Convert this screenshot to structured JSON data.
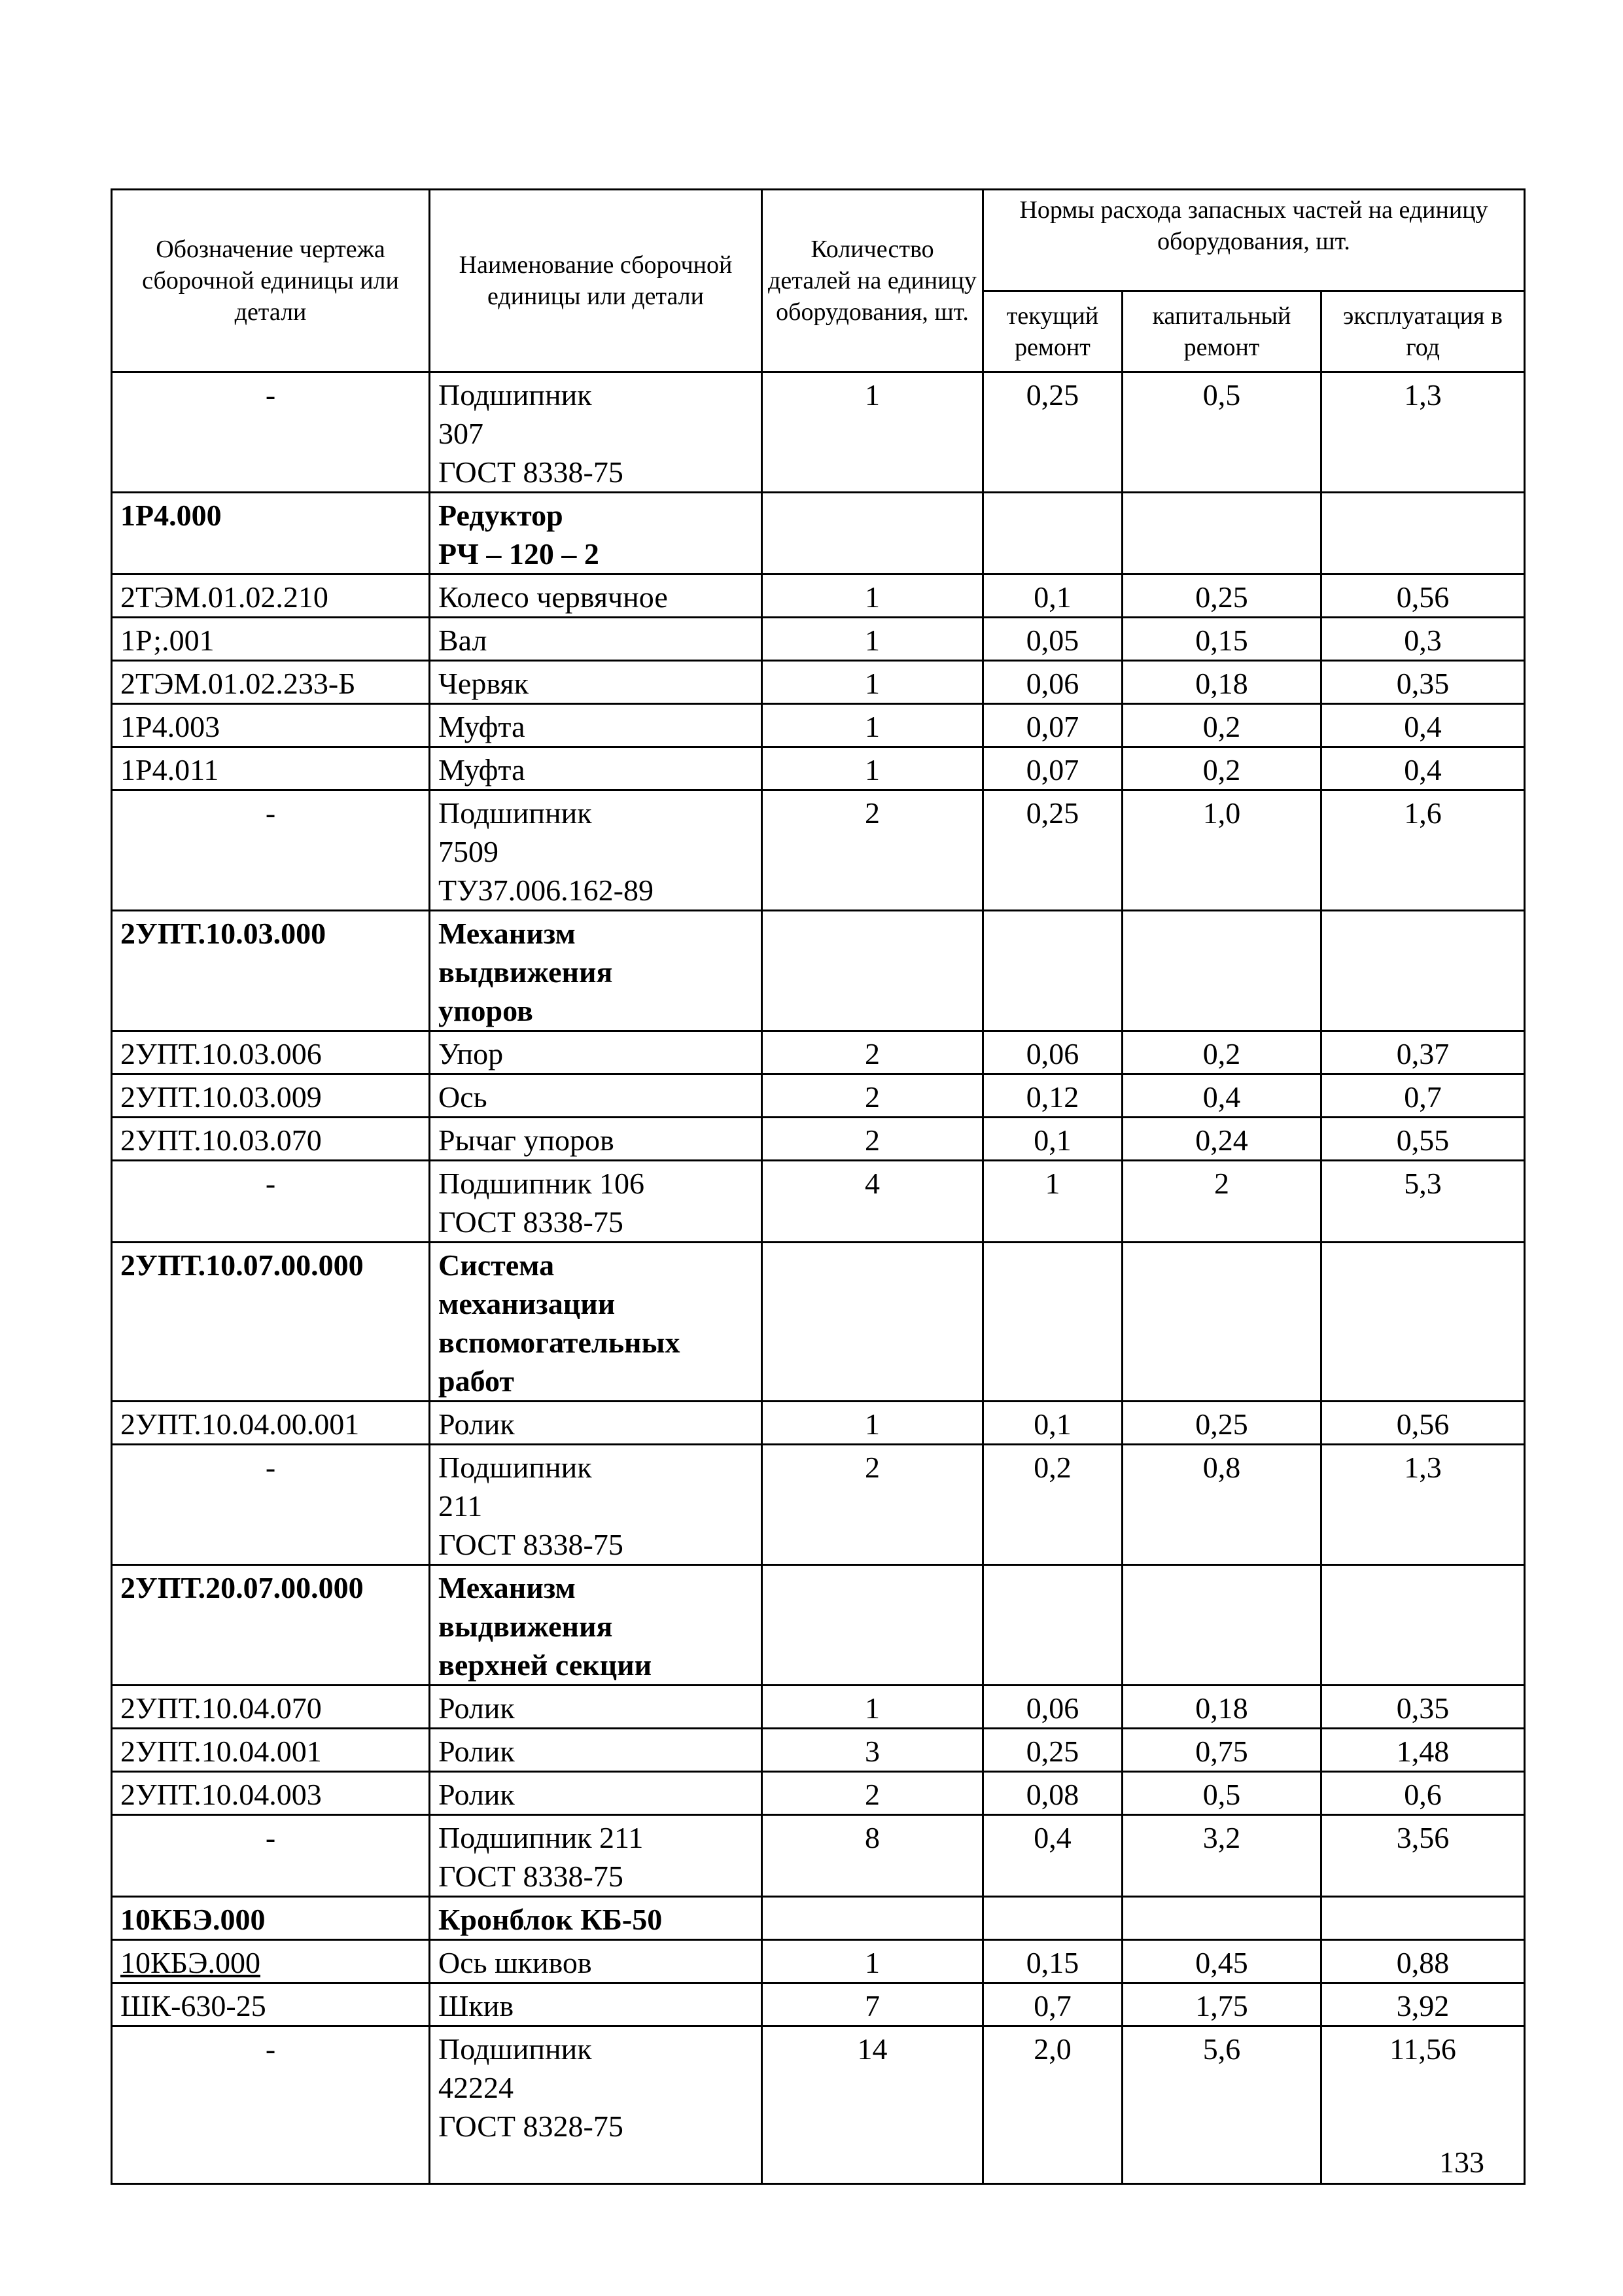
{
  "headers": {
    "designation": "Обозначение чертежа сборочной единицы или детали",
    "name": "Наименование сборочной единицы или детали",
    "quantity": "Количество деталей на единицу оборудования, шт.",
    "norms": "Нормы расхода запасных частей на единицу оборудования, шт.",
    "current_repair": "текущий ремонт",
    "capital_repair": "капитальный ремонт",
    "operation_per_year": "эксплуатация в год"
  },
  "rows": [
    {
      "designation": "-",
      "name": "Подшипник\n307\nГОСТ 8338-75",
      "qty": "1",
      "current": "0,25",
      "capital": "0,5",
      "yearly": "1,3"
    },
    {
      "designation": "1Р4.000",
      "name": "Редуктор\nРЧ – 120 – 2",
      "group": true
    },
    {
      "designation": "2ТЭМ.01.02.210",
      "name": "Колесо червячное",
      "qty": "1",
      "current": "0,1",
      "capital": "0,25",
      "yearly": "0,56"
    },
    {
      "designation": "1Р;.001",
      "name": "Вал",
      "qty": "1",
      "current": "0,05",
      "capital": "0,15",
      "yearly": "0,3"
    },
    {
      "designation": "2ТЭМ.01.02.233-Б",
      "name": "Червяк",
      "qty": "1",
      "current": "0,06",
      "capital": "0,18",
      "yearly": "0,35"
    },
    {
      "designation": "1Р4.003",
      "name": "Муфта",
      "qty": "1",
      "current": "0,07",
      "capital": "0,2",
      "yearly": "0,4"
    },
    {
      "designation": "1Р4.011",
      "name": "Муфта",
      "qty": "1",
      "current": "0,07",
      "capital": "0,2",
      "yearly": "0,4"
    },
    {
      "designation": "-",
      "name": "Подшипник\n7509\nТУ37.006.162-89",
      "qty": "2",
      "current": "0,25",
      "capital": "1,0",
      "yearly": "1,6"
    },
    {
      "designation": "2УПТ.10.03.000",
      "name": "Механизм\nвыдвижения\nупоров",
      "group": true
    },
    {
      "designation": "2УПТ.10.03.006",
      "name": "Упор",
      "qty": "2",
      "current": "0,06",
      "capital": "0,2",
      "yearly": "0,37"
    },
    {
      "designation": "2УПТ.10.03.009",
      "name": "Ось",
      "qty": "2",
      "current": "0,12",
      "capital": "0,4",
      "yearly": "0,7"
    },
    {
      "designation": "2УПТ.10.03.070",
      "name": "Рычаг упоров",
      "qty": "2",
      "current": "0,1",
      "capital": "0,24",
      "yearly": "0,55"
    },
    {
      "designation": "-",
      "name": "Подшипник  106\nГОСТ 8338-75",
      "qty": "4",
      "current": "1",
      "capital": "2",
      "yearly": "5,3"
    },
    {
      "designation": "2УПТ.10.07.00.000",
      "name": "Система\nмеханизации\nвспомогательных\nработ",
      "group": true
    },
    {
      "designation": "2УПТ.10.04.00.001",
      "name": "Ролик",
      "qty": "1",
      "current": "0,1",
      "capital": "0,25",
      "yearly": "0,56"
    },
    {
      "designation": "-",
      "name": "Подшипник\n211\nГОСТ 8338-75",
      "qty": "2",
      "current": "0,2",
      "capital": "0,8",
      "yearly": "1,3"
    },
    {
      "designation": "2УПТ.20.07.00.000",
      "name": "Механизм\nвыдвижения\nверхней секции",
      "group": true
    },
    {
      "designation": "2УПТ.10.04.070",
      "name": "Ролик",
      "qty": "1",
      "current": "0,06",
      "capital": "0,18",
      "yearly": "0,35"
    },
    {
      "designation": "2УПТ.10.04.001",
      "name": "Ролик",
      "qty": "3",
      "current": "0,25",
      "capital": "0,75",
      "yearly": "1,48"
    },
    {
      "designation": "2УПТ.10.04.003",
      "name": "Ролик",
      "qty": "2",
      "current": "0,08",
      "capital": "0,5",
      "yearly": "0,6"
    },
    {
      "designation": "-",
      "name": "Подшипник  211\nГОСТ 8338-75",
      "qty": "8",
      "current": "0,4",
      "capital": "3,2",
      "yearly": "3,56"
    },
    {
      "designation": "10КБЭ.000",
      "name": "Кронблок КБ-50",
      "group": true
    },
    {
      "designation": "10КБЭ.000",
      "name": "Ось шкивов",
      "qty": "1",
      "current": "0,15",
      "capital": "0,45",
      "yearly": "0,88",
      "underline": true
    },
    {
      "designation": "ШК-630-25",
      "name": "Шкив",
      "qty": "7",
      "current": "0,7",
      "capital": "1,75",
      "yearly": "3,92"
    },
    {
      "designation": "-",
      "name": "Подшипник\n42224\nГОСТ 8328-75",
      "qty": "14",
      "current": "2,0",
      "capital": "5,6",
      "yearly": "11,56"
    }
  ],
  "page_number": "133"
}
